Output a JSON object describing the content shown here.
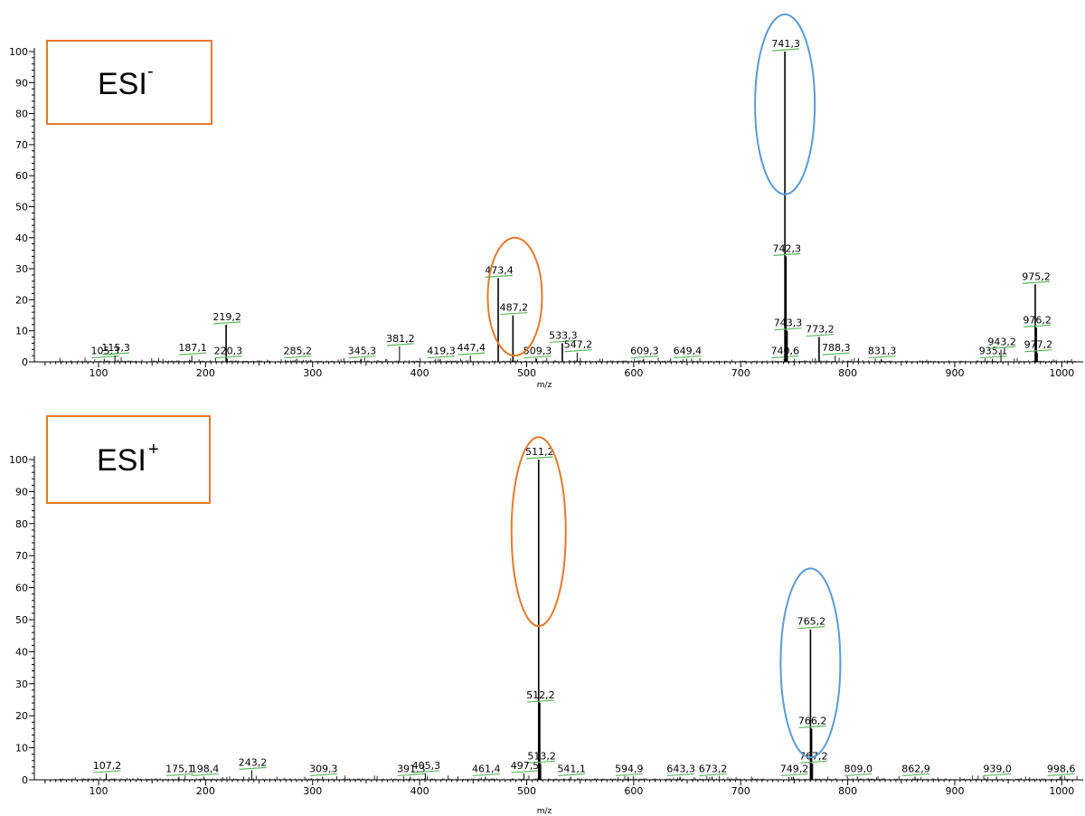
{
  "colors": {
    "orange": "#e47a2e",
    "blue": "#5b9bd5",
    "green": "#5cb85c",
    "black": "#000000"
  },
  "chart_data": [
    {
      "type": "line",
      "box_label": "ESI",
      "box_superscript": "-",
      "xlabel": "m/z",
      "xlim": [
        40,
        1020
      ],
      "ylim": [
        0,
        100
      ],
      "x_ticks": [
        100,
        200,
        300,
        400,
        500,
        600,
        700,
        800,
        900,
        1000
      ],
      "y_ticks": [
        0,
        10,
        20,
        30,
        40,
        50,
        60,
        70,
        80,
        90,
        100
      ],
      "peaks": [
        {
          "x": 105.3,
          "y": 1,
          "label": "105,3"
        },
        {
          "x": 115.3,
          "y": 2,
          "label": "115,3"
        },
        {
          "x": 187.1,
          "y": 2,
          "label": "187,1"
        },
        {
          "x": 219.2,
          "y": 12,
          "label": "219,2"
        },
        {
          "x": 220.3,
          "y": 1,
          "label": "220,3"
        },
        {
          "x": 285.2,
          "y": 1,
          "label": "285,2"
        },
        {
          "x": 345.3,
          "y": 1,
          "label": "345,3"
        },
        {
          "x": 381.2,
          "y": 5,
          "label": "381,2"
        },
        {
          "x": 419.3,
          "y": 1,
          "label": "419,3"
        },
        {
          "x": 447.4,
          "y": 2,
          "label": "447,4"
        },
        {
          "x": 473.4,
          "y": 27,
          "label": "473,4"
        },
        {
          "x": 487.2,
          "y": 15,
          "label": "487,2"
        },
        {
          "x": 509.3,
          "y": 1,
          "label": "509,3"
        },
        {
          "x": 533.3,
          "y": 6,
          "label": "533,3"
        },
        {
          "x": 547.2,
          "y": 3,
          "label": "547,2"
        },
        {
          "x": 609.3,
          "y": 1,
          "label": "609,3"
        },
        {
          "x": 649.4,
          "y": 1,
          "label": "649,4"
        },
        {
          "x": 740.6,
          "y": 1,
          "label": "740,6"
        },
        {
          "x": 741.3,
          "y": 100,
          "label": "741,3"
        },
        {
          "x": 742.3,
          "y": 34,
          "label": "742,3"
        },
        {
          "x": 743.3,
          "y": 10,
          "label": "743,3"
        },
        {
          "x": 773.2,
          "y": 8,
          "label": "773,2"
        },
        {
          "x": 788.3,
          "y": 2,
          "label": "788,3"
        },
        {
          "x": 831.3,
          "y": 1,
          "label": "831,3"
        },
        {
          "x": 935.1,
          "y": 1,
          "label": "935,1"
        },
        {
          "x": 943.2,
          "y": 4,
          "label": "943,2"
        },
        {
          "x": 975.2,
          "y": 25,
          "label": "975,2"
        },
        {
          "x": 976.2,
          "y": 11,
          "label": "976,2"
        },
        {
          "x": 977.2,
          "y": 3,
          "label": "977,2"
        }
      ],
      "highlights": [
        {
          "x": 489,
          "y_low": 2,
          "y_high": 40,
          "color": "orange"
        },
        {
          "x": 741.3,
          "y_low": 54,
          "y_high": 112,
          "color": "blue"
        }
      ]
    },
    {
      "type": "line",
      "box_label": "ESI",
      "box_superscript": "+",
      "xlabel": "m/z",
      "xlim": [
        40,
        1020
      ],
      "ylim": [
        0,
        100
      ],
      "x_ticks": [
        100,
        200,
        300,
        400,
        500,
        600,
        700,
        800,
        900,
        1000
      ],
      "y_ticks": [
        0,
        10,
        20,
        30,
        40,
        50,
        60,
        70,
        80,
        90,
        100
      ],
      "peaks": [
        {
          "x": 107.2,
          "y": 2,
          "label": "107,2"
        },
        {
          "x": 175.1,
          "y": 1,
          "label": "175,1"
        },
        {
          "x": 198.4,
          "y": 1,
          "label": "198,4"
        },
        {
          "x": 243.2,
          "y": 3,
          "label": "243,2"
        },
        {
          "x": 309.3,
          "y": 1,
          "label": "309,3"
        },
        {
          "x": 391.3,
          "y": 1,
          "label": "391,3"
        },
        {
          "x": 405.3,
          "y": 2,
          "label": "405,3"
        },
        {
          "x": 461.4,
          "y": 1,
          "label": "461,4"
        },
        {
          "x": 497.5,
          "y": 2,
          "label": "497,5"
        },
        {
          "x": 511.2,
          "y": 100,
          "label": "511,2"
        },
        {
          "x": 512.2,
          "y": 24,
          "label": "512,2"
        },
        {
          "x": 513.2,
          "y": 5,
          "label": "513,2"
        },
        {
          "x": 541.1,
          "y": 1,
          "label": "541,1"
        },
        {
          "x": 594.9,
          "y": 1,
          "label": "594,9"
        },
        {
          "x": 643.3,
          "y": 1,
          "label": "643,3"
        },
        {
          "x": 673.2,
          "y": 1,
          "label": "673,2"
        },
        {
          "x": 749.2,
          "y": 1,
          "label": "749,2"
        },
        {
          "x": 765.2,
          "y": 47,
          "label": "765,2"
        },
        {
          "x": 766.2,
          "y": 16,
          "label": "766,2"
        },
        {
          "x": 767.2,
          "y": 5,
          "label": "767,2"
        },
        {
          "x": 809.0,
          "y": 1,
          "label": "809,0"
        },
        {
          "x": 862.9,
          "y": 1,
          "label": "862,9"
        },
        {
          "x": 939.0,
          "y": 1,
          "label": "939,0"
        },
        {
          "x": 998.6,
          "y": 1,
          "label": "998,6"
        }
      ],
      "highlights": [
        {
          "x": 511.2,
          "y_low": 48,
          "y_high": 107,
          "color": "orange"
        },
        {
          "x": 765.2,
          "y_low": 7,
          "y_high": 66,
          "color": "blue"
        }
      ]
    }
  ]
}
